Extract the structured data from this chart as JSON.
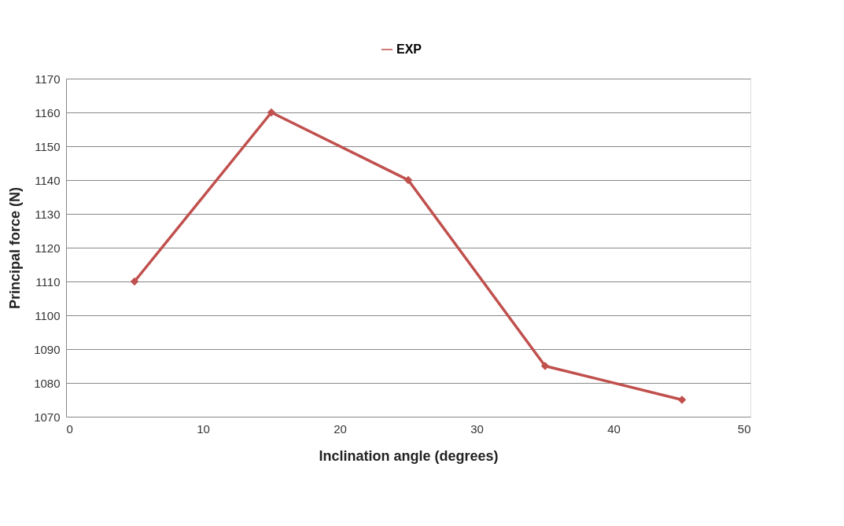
{
  "chart_data": {
    "type": "line",
    "x": [
      5,
      15,
      25,
      35,
      45
    ],
    "series": [
      {
        "name": "EXP",
        "color": "#c0504d",
        "values": [
          1110,
          1160,
          1140,
          1085,
          1075
        ]
      }
    ],
    "xlabel": "Inclination angle (degrees)",
    "ylabel": "Principal force (N)",
    "xlim": [
      0,
      50
    ],
    "xticks": [
      0,
      10,
      20,
      30,
      40,
      50
    ],
    "ylim": [
      1070,
      1170
    ],
    "yticks": [
      1070,
      1080,
      1090,
      1100,
      1110,
      1120,
      1130,
      1140,
      1150,
      1160,
      1170
    ],
    "grid": "y",
    "legend": "top",
    "marker": "diamond",
    "line_style": "solid"
  }
}
